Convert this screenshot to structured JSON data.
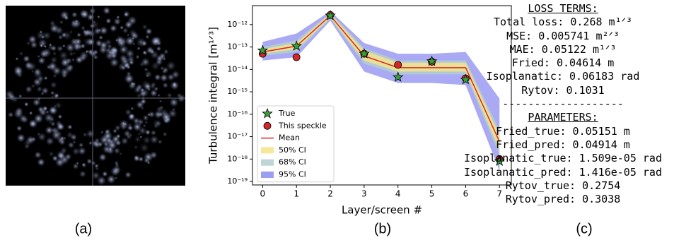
{
  "panel_labels": [
    "(a)",
    "(b)",
    "(c)"
  ],
  "text_panel": {
    "loss_heading": "LOSS TERMS:",
    "loss_lines": [
      "Total loss: 0.268 m¹ᐟ³",
      "MSE: 0.005741 m²ᐟ³",
      "MAE: 0.05122 m¹ᐟ³",
      "Fried: 0.04614 m",
      "Isoplanatic: 0.06183 rad",
      "Rytov: 0.1031"
    ],
    "separator": "-------------------",
    "params_heading": "PARAMETERS:",
    "param_lines": [
      "Fried_true: 0.05151 m",
      "Fried_pred: 0.04914 m",
      "Isoplanatic_true: 1.509e-05 rad",
      "Isoplanatic_pred: 1.416e-05 rad",
      "Rytov_true: 0.2754",
      "Rytov_pred: 0.3038"
    ]
  },
  "chart_data": {
    "type": "line",
    "x_label": "Layer/screen #",
    "y_label": "Turbulence integral [m¹ᐟ³]",
    "log_y": true,
    "x": [
      0,
      1,
      2,
      3,
      4,
      5,
      6,
      7
    ],
    "xlim": [
      -0.3,
      7.35
    ],
    "xticks": [
      0,
      1,
      2,
      3,
      4,
      5,
      6,
      7
    ],
    "ylim": [
      7e-20,
      7e-12
    ],
    "yticks": [
      {
        "value": 1e-12,
        "label": "10⁻¹²"
      },
      {
        "value": 1e-13,
        "label": "10⁻¹³"
      },
      {
        "value": 1e-14,
        "label": "10⁻¹⁴"
      },
      {
        "value": 1e-15,
        "label": "10⁻¹⁵"
      },
      {
        "value": 1e-16,
        "label": "10⁻¹⁶"
      },
      {
        "value": 1e-17,
        "label": "10⁻¹⁷"
      },
      {
        "value": 1e-18,
        "label": "10⁻¹⁸"
      },
      {
        "value": 1e-19,
        "label": "10⁻¹⁹"
      }
    ],
    "legend": "lower left",
    "series": [
      {
        "name": "True",
        "style": "star",
        "color": "#3a9e3a",
        "values": [
          7e-14,
          1.1e-13,
          2.5e-12,
          5e-14,
          4.5e-15,
          2.3e-14,
          3.5e-15,
          8e-19
        ]
      },
      {
        "name": "This speckle",
        "style": "circle",
        "color": "#d62728",
        "values": [
          5e-14,
          3.5e-14,
          2.7e-12,
          5e-14,
          1.6e-14,
          2.2e-14,
          4e-15,
          1e-18
        ]
      },
      {
        "name": "Mean",
        "style": "line",
        "color": "#d62728",
        "values": [
          6e-14,
          1.1e-13,
          2.5e-12,
          4e-14,
          1.2e-14,
          1.2e-14,
          1.2e-14,
          6e-18
        ]
      },
      {
        "name": "50% CI",
        "style": "band",
        "color": "#f5e48a",
        "lower": [
          5e-14,
          8e-14,
          2e-12,
          2.5e-14,
          8e-15,
          8e-15,
          8e-15,
          2.5e-18
        ],
        "upper": [
          8e-14,
          1.5e-13,
          3e-12,
          7e-14,
          2e-14,
          2e-14,
          2e-14,
          1.2e-17
        ]
      },
      {
        "name": "68% CI",
        "style": "band",
        "color": "#b3cfd0",
        "lower": [
          4e-14,
          6e-14,
          1.8e-12,
          1.8e-14,
          6e-15,
          6e-15,
          6e-15,
          1.5e-18
        ],
        "upper": [
          1e-13,
          2e-13,
          3.3e-12,
          9e-14,
          2.5e-14,
          2.5e-14,
          2.5e-14,
          2e-17
        ]
      },
      {
        "name": "95% CI",
        "style": "band",
        "color": "#8c8cf0",
        "lower": [
          2.5e-14,
          3.5e-14,
          1.5e-12,
          8e-15,
          2.5e-15,
          2.5e-15,
          2e-15,
          3e-19
        ],
        "upper": [
          1.7e-13,
          4e-13,
          4e-12,
          1.5e-13,
          5e-14,
          5e-14,
          6e-14,
          5e-16
        ]
      }
    ]
  }
}
